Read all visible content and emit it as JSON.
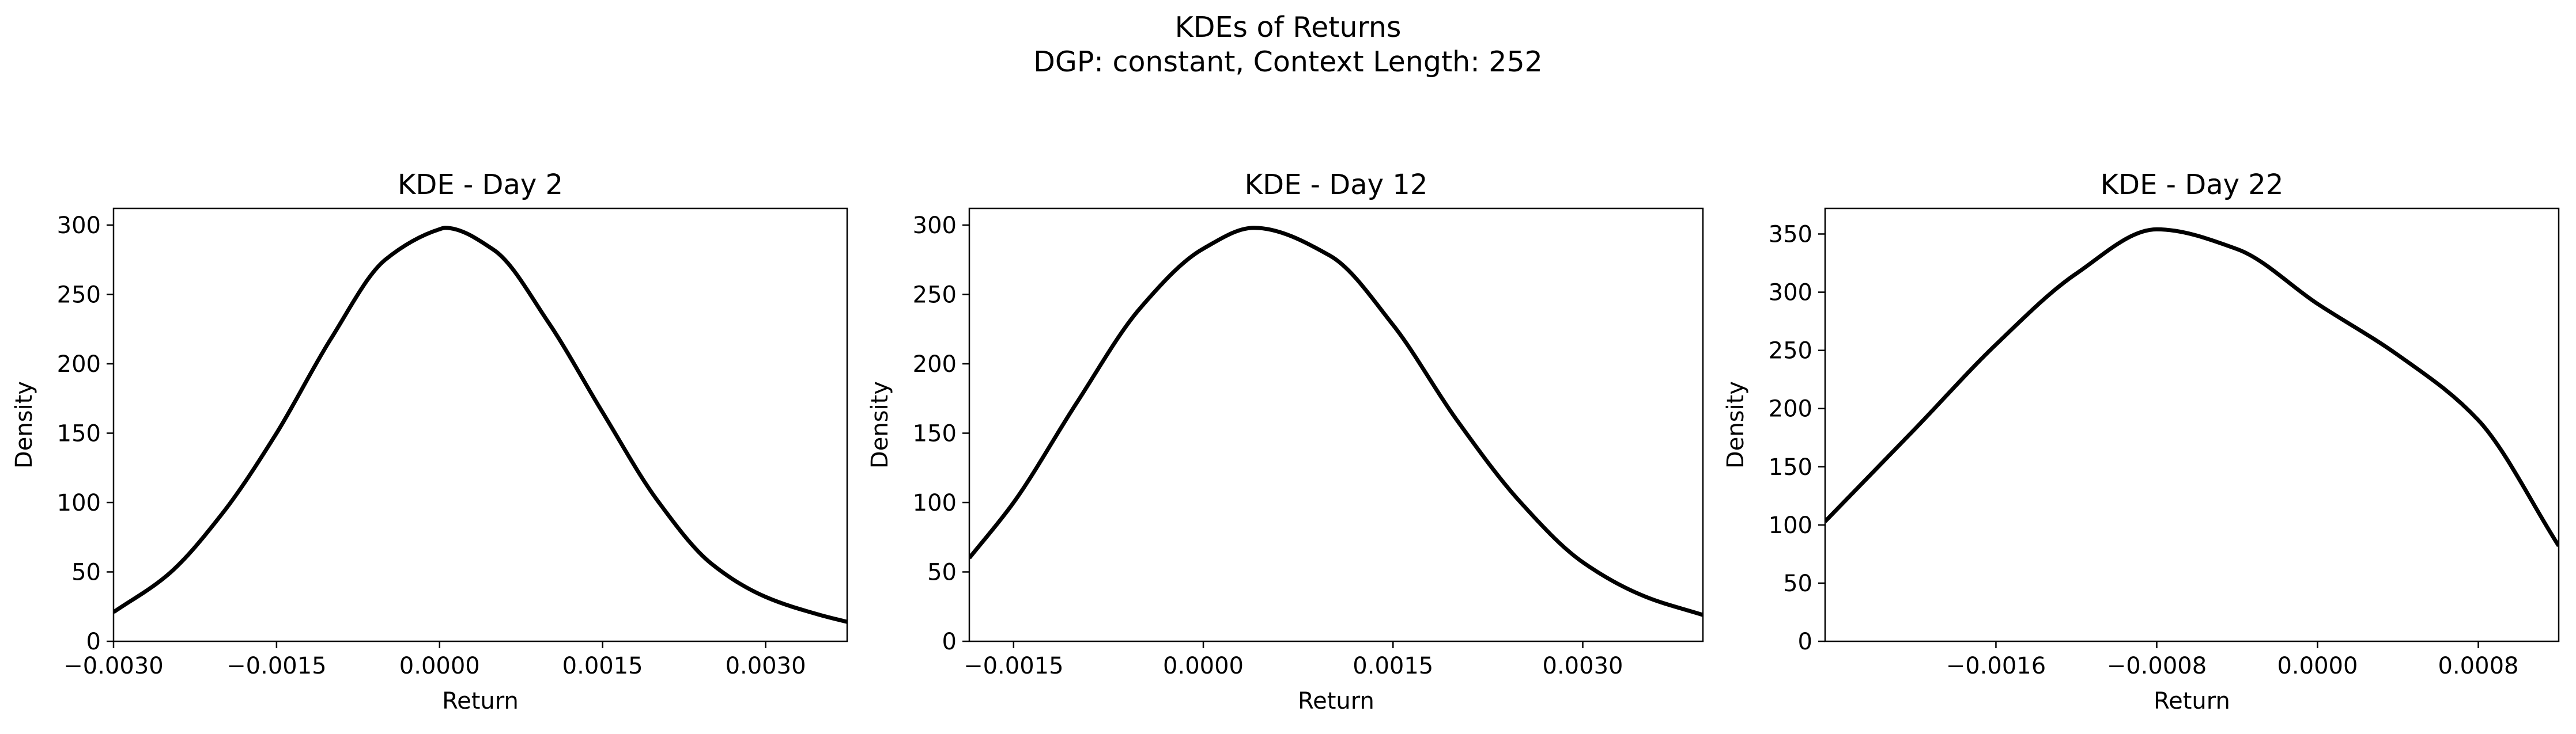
{
  "figure": {
    "title_line1": "KDEs of Returns",
    "title_line2": "DGP: constant, Context Length: 252"
  },
  "colors": {
    "line": "#000000",
    "axes": "#000000",
    "background": "#ffffff"
  },
  "chart_data": [
    {
      "type": "line",
      "title": "KDE - Day 2",
      "xlabel": "Return",
      "ylabel": "Density",
      "xlim": [
        -0.003,
        0.00375
      ],
      "ylim": [
        0,
        312
      ],
      "xticks": [
        -0.003,
        -0.0015,
        0.0,
        0.0015,
        0.003
      ],
      "xtick_labels": [
        "−0.0030",
        "−0.0015",
        "0.0000",
        "0.0015",
        "0.0030"
      ],
      "yticks": [
        0,
        50,
        100,
        150,
        200,
        250,
        300
      ],
      "ytick_labels": [
        "0",
        "50",
        "100",
        "150",
        "200",
        "250",
        "300"
      ],
      "grid": false,
      "series": [
        {
          "x": [
            -0.003,
            -0.0025,
            -0.002,
            -0.0015,
            -0.001,
            -0.0005,
            0.0,
            5e-05,
            0.0005,
            0.001,
            0.0015,
            0.002,
            0.0025,
            0.003,
            0.0035,
            0.00375
          ],
          "values": [
            21,
            48,
            92,
            150,
            218,
            275,
            297,
            298,
            282,
            230,
            165,
            102,
            56,
            32,
            19,
            14
          ]
        }
      ]
    },
    {
      "type": "line",
      "title": "KDE - Day 12",
      "xlabel": "Return",
      "ylabel": "Density",
      "xlim": [
        -0.00185,
        0.00395
      ],
      "ylim": [
        0,
        312
      ],
      "xticks": [
        -0.0015,
        0.0,
        0.0015,
        0.003
      ],
      "xtick_labels": [
        "−0.0015",
        "0.0000",
        "0.0015",
        "0.0030"
      ],
      "yticks": [
        0,
        50,
        100,
        150,
        200,
        250,
        300
      ],
      "ytick_labels": [
        "0",
        "50",
        "100",
        "150",
        "200",
        "250",
        "300"
      ],
      "grid": false,
      "series": [
        {
          "x": [
            -0.00185,
            -0.0015,
            -0.001,
            -0.0005,
            0.0,
            0.0004,
            0.001,
            0.0015,
            0.002,
            0.0025,
            0.003,
            0.0035,
            0.00395
          ],
          "values": [
            60,
            100,
            172,
            240,
            283,
            298,
            278,
            228,
            160,
            101,
            57,
            32,
            19
          ]
        }
      ]
    },
    {
      "type": "line",
      "title": "KDE - Day 22",
      "xlabel": "Return",
      "ylabel": "Density",
      "xlim": [
        -0.00245,
        0.0012
      ],
      "ylim": [
        0,
        372
      ],
      "xticks": [
        -0.0016,
        -0.0008,
        0.0,
        0.0008
      ],
      "xtick_labels": [
        "−0.0016",
        "−0.0008",
        "0.0000",
        "0.0008"
      ],
      "yticks": [
        0,
        50,
        100,
        150,
        200,
        250,
        300,
        350
      ],
      "ytick_labels": [
        "0",
        "50",
        "100",
        "150",
        "200",
        "250",
        "300",
        "350"
      ],
      "grid": false,
      "series": [
        {
          "x": [
            -0.00245,
            -0.002,
            -0.0016,
            -0.0012,
            -0.0008,
            -0.0004,
            0.0,
            0.0004,
            0.0008,
            0.0012
          ],
          "values": [
            103,
            183,
            255,
            316,
            354,
            337,
            290,
            246,
            190,
            82
          ]
        }
      ]
    }
  ]
}
